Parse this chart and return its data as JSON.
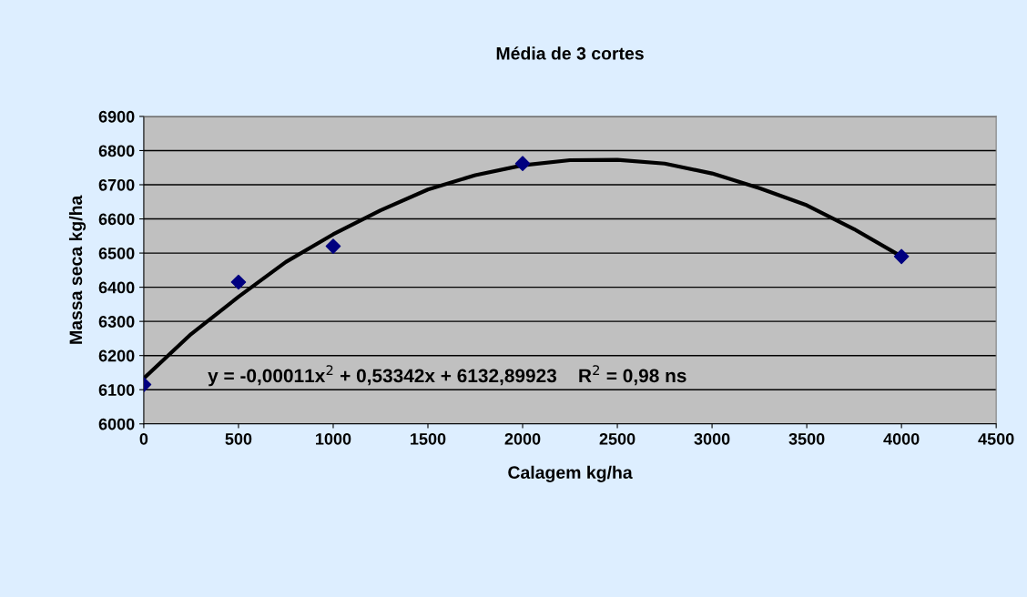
{
  "chart_data": {
    "type": "scatter",
    "title": "Média de 3 cortes",
    "xlabel": "Calagem kg/ha",
    "ylabel": "Massa seca kg/ha",
    "x": [
      0,
      500,
      1000,
      2000,
      4000
    ],
    "series": [
      {
        "color": "#000080",
        "marker": "diamond",
        "values": [
          6115,
          6415,
          6520,
          6762,
          6490
        ]
      },
      {
        "type": "line",
        "color": "#000000",
        "marker": "none",
        "x": [
          0,
          250,
          500,
          750,
          1000,
          1250,
          1500,
          1750,
          2000,
          2250,
          2500,
          2750,
          3000,
          3250,
          3500,
          3750,
          4000
        ],
        "values": [
          6133,
          6263,
          6372,
          6474,
          6555,
          6625,
          6686,
          6728,
          6757,
          6772,
          6773,
          6762,
          6733,
          6690,
          6640,
          6570,
          6490
        ]
      }
    ],
    "xlim": [
      0,
      4500
    ],
    "xticks": [
      0,
      500,
      1000,
      1500,
      2000,
      2500,
      3000,
      3500,
      4000,
      4500
    ],
    "ylim": [
      6000,
      6900
    ],
    "yticks": [
      6000,
      6100,
      6200,
      6300,
      6400,
      6500,
      6600,
      6700,
      6800,
      6900
    ],
    "grid": "y",
    "legend": false,
    "annotations": [
      "y = -0,00011x$^{2}$ + 0,53342x + 6132,89923    R$^{2}$ = 0,98 ns"
    ]
  }
}
